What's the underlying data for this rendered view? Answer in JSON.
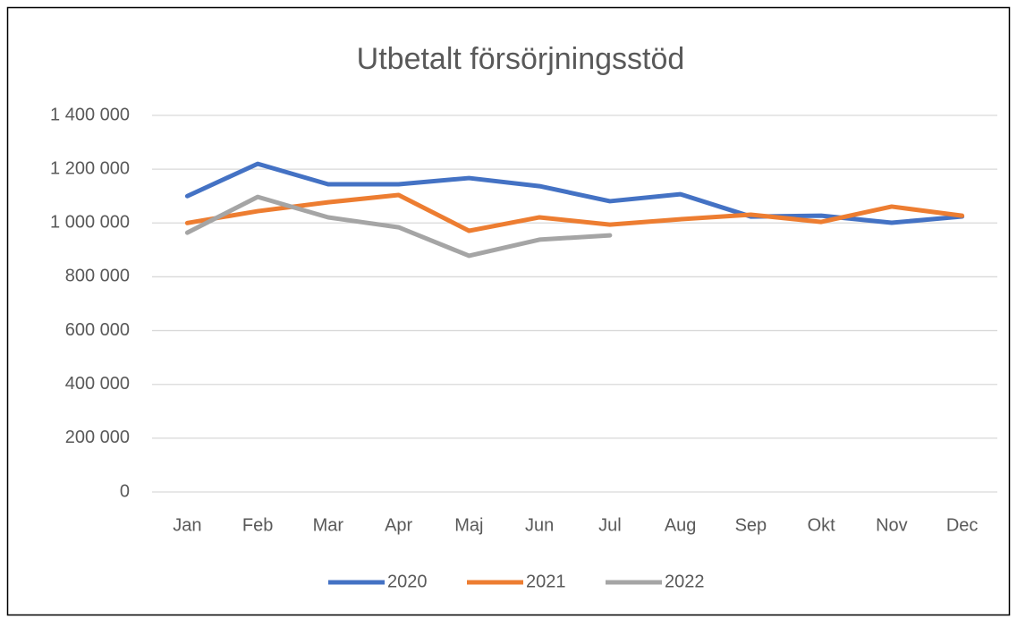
{
  "chart_data": {
    "type": "line",
    "title": "Utbetalt försörjningsstöd",
    "categories": [
      "Jan",
      "Feb",
      "Mar",
      "Apr",
      "Maj",
      "Jun",
      "Jul",
      "Aug",
      "Sep",
      "Okt",
      "Nov",
      "Dec"
    ],
    "series": [
      {
        "name": "2020",
        "color": "#4472c4",
        "values": [
          1100000,
          1220000,
          1144000,
          1144000,
          1167000,
          1137000,
          1081000,
          1107000,
          1024000,
          1027000,
          1001000,
          1024000
        ]
      },
      {
        "name": "2021",
        "color": "#ed7d31",
        "values": [
          1000000,
          1044000,
          1077000,
          1104000,
          971000,
          1021000,
          994000,
          1014000,
          1031000,
          1004000,
          1061000,
          1027000
        ]
      },
      {
        "name": "2022",
        "color": "#a5a5a5",
        "values": [
          964000,
          1097000,
          1021000,
          984000,
          878000,
          938000,
          954000,
          null,
          null,
          null,
          null,
          null
        ]
      }
    ],
    "ylim": [
      0,
      1400000
    ],
    "yticks": [
      0,
      {
        "value": 200000,
        "label": "200 000"
      },
      {
        "value": 400000,
        "label": "400 000"
      },
      {
        "value": 600000,
        "label": "600 000"
      },
      {
        "value": 800000,
        "label": "800 000"
      },
      {
        "value": 1000000,
        "label": "1 000 000"
      },
      {
        "value": 1200000,
        "label": "1 200 000"
      },
      {
        "value": 1400000,
        "label": "1 400 000"
      }
    ],
    "grid": true,
    "legend": "bottom"
  }
}
